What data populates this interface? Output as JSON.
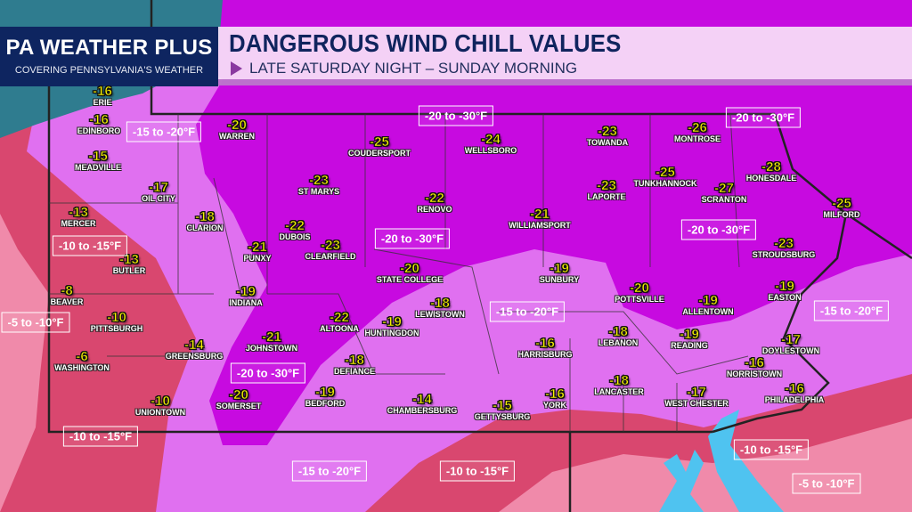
{
  "brand": {
    "title": "PA WEATHER PLUS",
    "subtitle": "COVERING PENNSYLVANIA'S WEATHER"
  },
  "banner": {
    "title": "DANGEROUS WIND CHILL VALUES",
    "subtitle": "LATE SATURDAY NIGHT – SUNDAY MORNING",
    "icon": "play-triangle-icon"
  },
  "colors": {
    "band_5_10": "#f08aaa",
    "band_10_15": "#d9476f",
    "band_15_20": "#e070f0",
    "band_20_30": "#c70ae0",
    "lake": "#2f7c8f",
    "water": "#4fc3f0",
    "value_text": "#f4f000",
    "header_bg": "#0e2560"
  },
  "cities": [
    {
      "name": "ERIE",
      "value": "-16"
    },
    {
      "name": "EDINBORO",
      "value": "-16"
    },
    {
      "name": "MEADVILLE",
      "value": "-15"
    },
    {
      "name": "OIL CITY",
      "value": "-17"
    },
    {
      "name": "CLARION",
      "value": "-18"
    },
    {
      "name": "MERCER",
      "value": "-13"
    },
    {
      "name": "BUTLER",
      "value": "-13"
    },
    {
      "name": "BEAVER",
      "value": "-8"
    },
    {
      "name": "PITTSBURGH",
      "value": "-10"
    },
    {
      "name": "WASHINGTON",
      "value": "-6"
    },
    {
      "name": "GREENSBURG",
      "value": "-14"
    },
    {
      "name": "UNIONTOWN",
      "value": "-10"
    },
    {
      "name": "WARREN",
      "value": "-20"
    },
    {
      "name": "COUDERSPORT",
      "value": "-25"
    },
    {
      "name": "ST MARYS",
      "value": "-23"
    },
    {
      "name": "DUBOIS",
      "value": "-22"
    },
    {
      "name": "PUNXY",
      "value": "-21"
    },
    {
      "name": "CLEARFIELD",
      "value": "-23"
    },
    {
      "name": "INDIANA",
      "value": "-19"
    },
    {
      "name": "JOHNSTOWN",
      "value": "-21"
    },
    {
      "name": "SOMERSET",
      "value": "-20"
    },
    {
      "name": "ALTOONA",
      "value": "-22"
    },
    {
      "name": "DEFIANCE",
      "value": "-18"
    },
    {
      "name": "BEDFORD",
      "value": "-19"
    },
    {
      "name": "HUNTINGDON",
      "value": "-19"
    },
    {
      "name": "LEWISTOWN",
      "value": "-18"
    },
    {
      "name": "RENOVO",
      "value": "-22"
    },
    {
      "name": "WELLSBORO",
      "value": "-24"
    },
    {
      "name": "STATE COLLEGE",
      "value": "-20"
    },
    {
      "name": "WILLIAMSPORT",
      "value": "-21"
    },
    {
      "name": "SUNBURY",
      "value": "-19"
    },
    {
      "name": "TOWANDA",
      "value": "-23"
    },
    {
      "name": "LAPORTE",
      "value": "-23"
    },
    {
      "name": "MONTROSE",
      "value": "-26"
    },
    {
      "name": "TUNKHANNOCK",
      "value": "-25"
    },
    {
      "name": "SCRANTON",
      "value": "-27"
    },
    {
      "name": "HONESDALE",
      "value": "-28"
    },
    {
      "name": "MILFORD",
      "value": "-25"
    },
    {
      "name": "STROUDSBURG",
      "value": "-23"
    },
    {
      "name": "POTTSVILLE",
      "value": "-20"
    },
    {
      "name": "ALLENTOWN",
      "value": "-19"
    },
    {
      "name": "EASTON",
      "value": "-19"
    },
    {
      "name": "HARRISBURG",
      "value": "-16"
    },
    {
      "name": "LEBANON",
      "value": "-18"
    },
    {
      "name": "READING",
      "value": "-19"
    },
    {
      "name": "DOYLESTOWN",
      "value": "-17"
    },
    {
      "name": "NORRISTOWN",
      "value": "-16"
    },
    {
      "name": "PHILADELPHIA",
      "value": "-16"
    },
    {
      "name": "LANCASTER",
      "value": "-18"
    },
    {
      "name": "WEST CHESTER",
      "value": "-17"
    },
    {
      "name": "YORK",
      "value": "-16"
    },
    {
      "name": "GETTYSBURG",
      "value": "-15"
    },
    {
      "name": "CHAMBERSBURG",
      "value": "-14"
    }
  ],
  "ranges": [
    "-15 to -20°F",
    "-20 to -30°F",
    "-20 to -30°F",
    "-20 to -30°F",
    "-20 to -30°F",
    "-10 to -15°F",
    "-5 to -10°F",
    "-20 to -30°F",
    "-15 to -20°F",
    "-15 to -20°F",
    "-10 to -15°F",
    "-15 to -20°F",
    "-10 to -15°F",
    "-10 to -15°F",
    "-5 to -10°F"
  ]
}
